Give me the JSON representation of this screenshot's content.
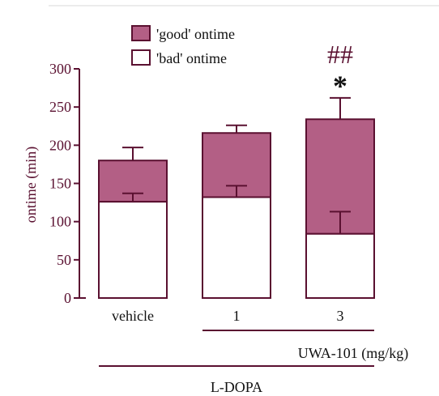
{
  "colors": {
    "axis": "#5a1030",
    "good_fill": "#b35f85",
    "bad_fill": "#ffffff",
    "bar_stroke": "#5a1030",
    "text": "#111111",
    "top_rule": "#d9d9d9"
  },
  "chart_data": {
    "type": "bar",
    "stacked": true,
    "categories": [
      "vehicle",
      "1",
      "3"
    ],
    "ylabel": "ontime (min)",
    "ylim": [
      0,
      300
    ],
    "yticks": [
      0,
      50,
      100,
      150,
      200,
      250,
      300
    ],
    "grid": false,
    "legend_position": "top-left",
    "series": [
      {
        "name": "'bad' ontime",
        "values": [
          126,
          132,
          84
        ],
        "errors": [
          11,
          15,
          29
        ]
      },
      {
        "name": "'good' ontime",
        "values": [
          54,
          84,
          150
        ],
        "errors": [
          17,
          10,
          28
        ]
      }
    ],
    "annotations": [
      {
        "category": "3",
        "text": "*"
      },
      {
        "category": "3",
        "text": "##"
      }
    ],
    "group_labels": [
      {
        "text": "UWA-101 (mg/kg)",
        "categories": [
          "1",
          "3"
        ]
      },
      {
        "text": "L-DOPA",
        "categories": [
          "vehicle",
          "1",
          "3"
        ]
      }
    ]
  }
}
